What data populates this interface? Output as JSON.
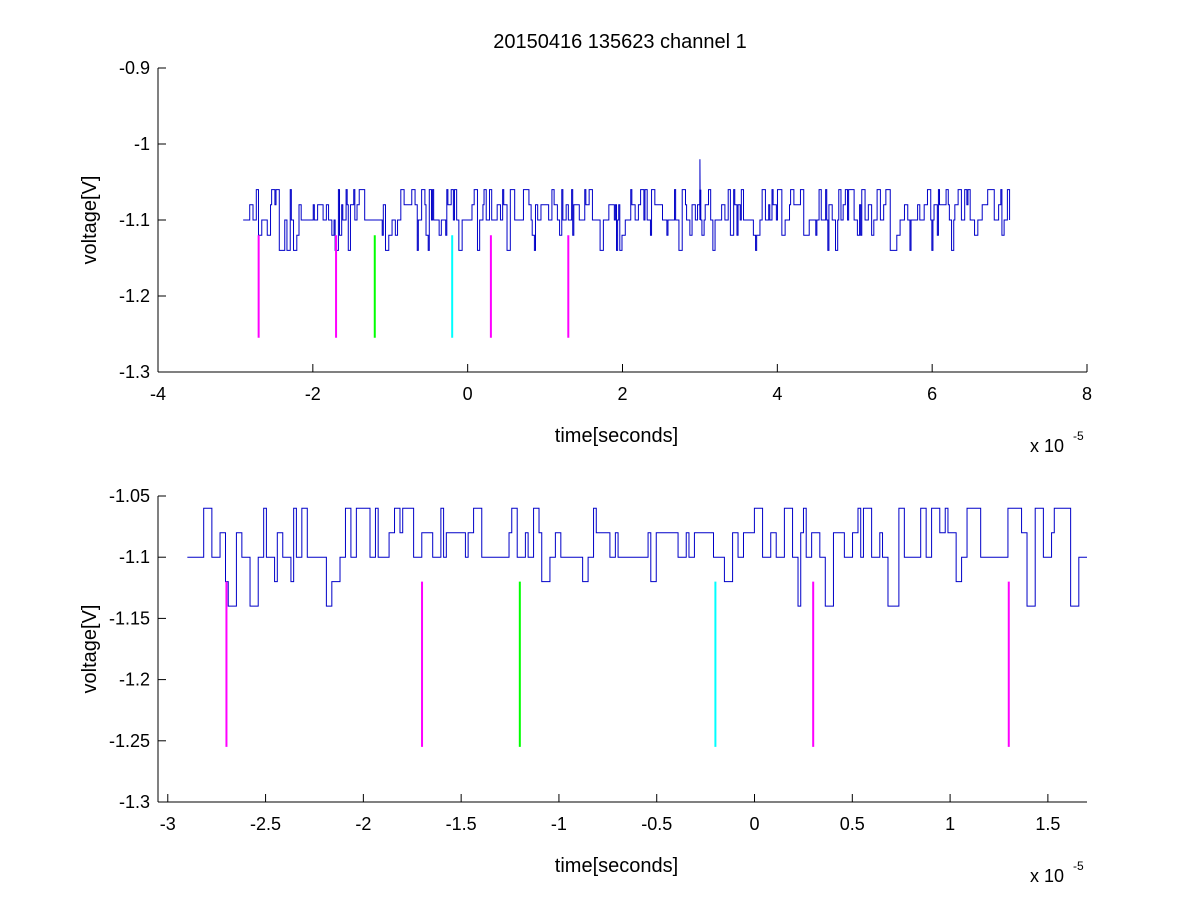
{
  "figure": {
    "title": "20150416 135623 channel 1"
  },
  "colors": {
    "signal": "#0000c8",
    "magenta": "#ff00ff",
    "green": "#00ff00",
    "cyan": "#00ffff",
    "axis": "#000000"
  },
  "chart_data": [
    {
      "type": "line",
      "title": "20150416 135623 channel 1",
      "xlabel": "time[seconds]",
      "ylabel": "voltage[V]",
      "x_exponent": {
        "base": "x 10",
        "power": "-5"
      },
      "xlim": [
        -4,
        8
      ],
      "ylim": [
        -1.3,
        -0.9
      ],
      "xticks": [
        -4,
        -2,
        0,
        2,
        4,
        6,
        8
      ],
      "xtick_labels": [
        "-4",
        "-2",
        "0",
        "2",
        "4",
        "6",
        "8"
      ],
      "yticks": [
        -1.3,
        -1.2,
        -1.1,
        -1,
        -0.9
      ],
      "ytick_labels": [
        "-1.3",
        "-1.2",
        "-1.1",
        "-1",
        "-0.9"
      ],
      "grid": false,
      "series": [
        {
          "signal": {
            "x_range": [
              -2.9,
              7.0
            ],
            "baseline": -1.1,
            "levels": [
              -1.14,
              -1.12,
              -1.1,
              -1.08,
              -1.06
            ],
            "spike": {
              "x": 3.0,
              "y": -1.02
            }
          }
        }
      ],
      "markers": [
        {
          "x": -2.7,
          "y_top": -1.12,
          "y_bottom": -1.255,
          "color": "magenta"
        },
        {
          "x": -1.7,
          "y_top": -1.12,
          "y_bottom": -1.255,
          "color": "magenta"
        },
        {
          "x": -1.2,
          "y_top": -1.12,
          "y_bottom": -1.255,
          "color": "green"
        },
        {
          "x": -0.2,
          "y_top": -1.12,
          "y_bottom": -1.255,
          "color": "cyan"
        },
        {
          "x": 0.3,
          "y_top": -1.12,
          "y_bottom": -1.255,
          "color": "magenta"
        },
        {
          "x": 1.3,
          "y_top": -1.12,
          "y_bottom": -1.255,
          "color": "magenta"
        }
      ]
    },
    {
      "type": "line",
      "xlabel": "time[seconds]",
      "ylabel": "voltage[V]",
      "x_exponent": {
        "base": "x 10",
        "power": "-5"
      },
      "xlim": [
        -3.05,
        1.7
      ],
      "ylim": [
        -1.3,
        -1.05
      ],
      "xticks": [
        -3,
        -2.5,
        -2,
        -1.5,
        -1,
        -0.5,
        0,
        0.5,
        1,
        1.5
      ],
      "xtick_labels": [
        "-3",
        "-2.5",
        "-2",
        "-1.5",
        "-1",
        "-0.5",
        "0",
        "0.5",
        "1",
        "1.5"
      ],
      "yticks": [
        -1.3,
        -1.25,
        -1.2,
        -1.15,
        -1.1,
        -1.05
      ],
      "ytick_labels": [
        "-1.3",
        "-1.25",
        "-1.2",
        "-1.15",
        "-1.1",
        "-1.05"
      ],
      "grid": false,
      "series": [
        {
          "signal": {
            "x_range": [
              -2.9,
              1.7
            ],
            "baseline": -1.1,
            "levels": [
              -1.14,
              -1.12,
              -1.1,
              -1.08,
              -1.06
            ]
          }
        }
      ],
      "markers": [
        {
          "x": -2.7,
          "y_top": -1.12,
          "y_bottom": -1.255,
          "color": "magenta"
        },
        {
          "x": -1.7,
          "y_top": -1.12,
          "y_bottom": -1.255,
          "color": "magenta"
        },
        {
          "x": -1.2,
          "y_top": -1.12,
          "y_bottom": -1.255,
          "color": "green"
        },
        {
          "x": -0.2,
          "y_top": -1.12,
          "y_bottom": -1.255,
          "color": "cyan"
        },
        {
          "x": 0.3,
          "y_top": -1.12,
          "y_bottom": -1.255,
          "color": "magenta"
        },
        {
          "x": 1.3,
          "y_top": -1.12,
          "y_bottom": -1.255,
          "color": "magenta"
        }
      ]
    }
  ]
}
